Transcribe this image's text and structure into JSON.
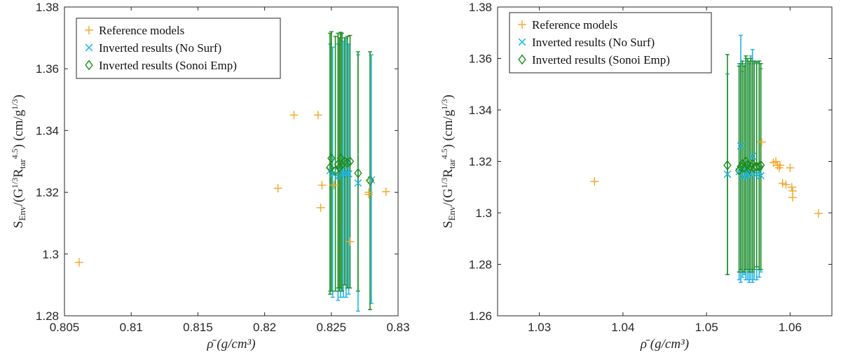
{
  "chart_data": [
    {
      "type": "scatter",
      "xlabel": "ρ̄ (g/cm³)",
      "ylabel": "S_Env/(G^{1/3}R_tar^{4.5}) (cm/g^{1/3})",
      "xlim": [
        0.805,
        0.83
      ],
      "ylim": [
        1.28,
        1.38
      ],
      "xticks": [
        0.805,
        0.81,
        0.815,
        0.82,
        0.825,
        0.83
      ],
      "xtick_labels": [
        "0.805",
        "0.81",
        "0.815",
        "0.82",
        "0.825",
        "0.83"
      ],
      "yticks": [
        1.28,
        1.3,
        1.32,
        1.34,
        1.36,
        1.38
      ],
      "ytick_labels": [
        "1.28",
        "1.3",
        "1.32",
        "1.34",
        "1.36",
        "1.38"
      ],
      "legend_position": "top-left",
      "series": [
        {
          "name": "Reference models",
          "marker": "plus",
          "color": "#F5A623",
          "points": [
            [
              0.8061,
              1.2973
            ],
            [
              0.821,
              1.3213
            ],
            [
              0.8222,
              1.345
            ],
            [
              0.824,
              1.345
            ],
            [
              0.8242,
              1.315
            ],
            [
              0.8243,
              1.3223
            ],
            [
              0.8252,
              1.3223
            ],
            [
              0.8264,
              1.304
            ],
            [
              0.8278,
              1.3193
            ],
            [
              0.8278,
              1.32
            ],
            [
              0.8279,
              1.324
            ],
            [
              0.8291,
              1.3202
            ]
          ]
        },
        {
          "name": "Inverted results (No Surf)",
          "marker": "x",
          "color": "#1EB4E6",
          "points": [
            [
              0.8249,
              1.327,
              1.288,
              1.368
            ],
            [
              0.8251,
              1.326,
              1.286,
              1.367
            ],
            [
              0.8255,
              1.325,
              1.285,
              1.368
            ],
            [
              0.8257,
              1.327,
              1.286,
              1.371
            ],
            [
              0.8259,
              1.326,
              1.286,
              1.369
            ],
            [
              0.8261,
              1.326,
              1.286,
              1.37
            ],
            [
              0.8263,
              1.326,
              1.287,
              1.368
            ],
            [
              0.827,
              1.323,
              1.2815,
              1.3645
            ],
            [
              0.828,
              1.324,
              1.284,
              1.3645
            ]
          ]
        },
        {
          "name": "Inverted results (Sonoi Emp)",
          "marker": "diamond",
          "color": "#1E8C1E",
          "points": [
            [
              0.8249,
              1.328,
              1.287,
              1.3715
            ],
            [
              0.825,
              1.331,
              1.288,
              1.372
            ],
            [
              0.8253,
              1.327,
              1.288,
              1.3705
            ],
            [
              0.8255,
              1.329,
              1.289,
              1.3715
            ],
            [
              0.8256,
              1.328,
              1.288,
              1.37
            ],
            [
              0.8257,
              1.331,
              1.289,
              1.3718
            ],
            [
              0.8258,
              1.329,
              1.288,
              1.3715
            ],
            [
              0.826,
              1.33,
              1.29,
              1.37
            ],
            [
              0.8262,
              1.3295,
              1.289,
              1.3705
            ],
            [
              0.8264,
              1.33,
              1.289,
              1.3708
            ],
            [
              0.827,
              1.3262,
              1.288,
              1.3655
            ],
            [
              0.8279,
              1.3238,
              1.282,
              1.3655
            ]
          ]
        }
      ]
    },
    {
      "type": "scatter",
      "xlabel": "ρ̄ (g/cm³)",
      "ylabel": "S_Env/(G^{1/3}R_tar^{4.5}) (cm/g^{1/3})",
      "xlim": [
        1.025,
        1.065
      ],
      "ylim": [
        1.26,
        1.38
      ],
      "xticks": [
        1.03,
        1.04,
        1.05,
        1.06
      ],
      "xtick_labels": [
        "1.03",
        "1.04",
        "1.05",
        "1.06"
      ],
      "yticks": [
        1.26,
        1.28,
        1.3,
        1.32,
        1.34,
        1.36,
        1.38
      ],
      "ytick_labels": [
        "1.26",
        "1.28",
        "1.3",
        "1.32",
        "1.34",
        "1.36",
        "1.38"
      ],
      "legend_position": "top-left",
      "series": [
        {
          "name": "Reference models",
          "marker": "plus",
          "color": "#F5A623",
          "points": [
            [
              1.0366,
              1.3122
            ],
            [
              1.0566,
              1.3275
            ],
            [
              1.058,
              1.3195
            ],
            [
              1.0583,
              1.32
            ],
            [
              1.0585,
              1.3185
            ],
            [
              1.0587,
              1.3175
            ],
            [
              1.0588,
              1.3185
            ],
            [
              1.0591,
              1.3115
            ],
            [
              1.0595,
              1.311
            ],
            [
              1.06,
              1.3175
            ],
            [
              1.0602,
              1.31
            ],
            [
              1.0603,
              1.3085
            ],
            [
              1.0603,
              1.306
            ],
            [
              1.0634,
              1.2998
            ]
          ]
        },
        {
          "name": "Inverted results (No Surf)",
          "marker": "x",
          "color": "#1EB4E6",
          "points": [
            [
              1.0525,
              1.315,
              1.276,
              1.354
            ],
            [
              1.0539,
              1.316,
              1.274,
              1.358
            ],
            [
              1.0541,
              1.326,
              1.273,
              1.369
            ],
            [
              1.0543,
              1.314,
              1.275,
              1.355
            ],
            [
              1.0545,
              1.317,
              1.276,
              1.358
            ],
            [
              1.0547,
              1.315,
              1.274,
              1.36
            ],
            [
              1.0549,
              1.314,
              1.274,
              1.359
            ],
            [
              1.0551,
              1.316,
              1.273,
              1.358
            ],
            [
              1.0553,
              1.315,
              1.274,
              1.361
            ],
            [
              1.0555,
              1.322,
              1.273,
              1.3635
            ],
            [
              1.0557,
              1.316,
              1.274,
              1.358
            ],
            [
              1.056,
              1.315,
              1.274,
              1.359
            ],
            [
              1.0563,
              1.316,
              1.275,
              1.358
            ],
            [
              1.0565,
              1.3145,
              1.277,
              1.356
            ]
          ]
        },
        {
          "name": "Inverted results (Sonoi Emp)",
          "marker": "diamond",
          "color": "#1E8C1E",
          "points": [
            [
              1.0525,
              1.3185,
              1.276,
              1.3615
            ],
            [
              1.0539,
              1.3165,
              1.277,
              1.357
            ],
            [
              1.0541,
              1.318,
              1.278,
              1.358
            ],
            [
              1.0543,
              1.319,
              1.277,
              1.359
            ],
            [
              1.0545,
              1.3175,
              1.277,
              1.357
            ],
            [
              1.0547,
              1.32,
              1.278,
              1.361
            ],
            [
              1.0549,
              1.3185,
              1.278,
              1.36
            ],
            [
              1.0551,
              1.317,
              1.277,
              1.359
            ],
            [
              1.0553,
              1.318,
              1.278,
              1.36
            ],
            [
              1.0555,
              1.319,
              1.277,
              1.359
            ],
            [
              1.0557,
              1.3175,
              1.278,
              1.359
            ],
            [
              1.056,
              1.318,
              1.279,
              1.3585
            ],
            [
              1.0563,
              1.318,
              1.278,
              1.359
            ],
            [
              1.0565,
              1.3185,
              1.278,
              1.358
            ]
          ]
        }
      ]
    }
  ]
}
